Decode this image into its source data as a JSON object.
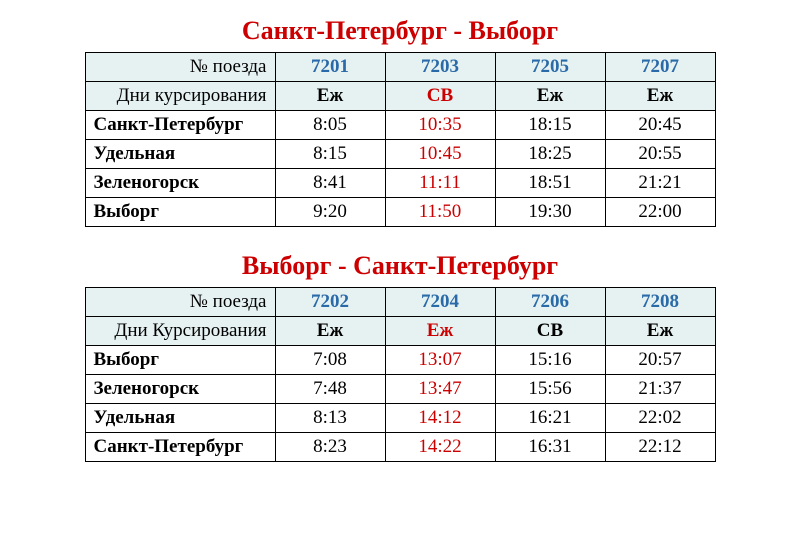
{
  "labels": {
    "train_no": "№ поезда",
    "days": "Дни курсирования",
    "days2": "Дни Курсирования"
  },
  "colors": {
    "title": "#cc0000",
    "header_bg": "#e6f2f2",
    "train_num": "#2a6aa8",
    "highlight": "#cc0000",
    "border": "#000000",
    "text": "#000000"
  },
  "tables": [
    {
      "title": "Санкт-Петербург - Выборг",
      "days_label_key": "days",
      "columns": [
        {
          "train": "7201",
          "days": "Еж",
          "highlight": false
        },
        {
          "train": "7203",
          "days": "СВ",
          "highlight": true
        },
        {
          "train": "7205",
          "days": "Еж",
          "highlight": false
        },
        {
          "train": "7207",
          "days": "Еж",
          "highlight": false
        }
      ],
      "rows": [
        {
          "station": "Санкт-Петербург",
          "times": [
            "8:05",
            "10:35",
            "18:15",
            "20:45"
          ]
        },
        {
          "station": "Удельная",
          "times": [
            "8:15",
            "10:45",
            "18:25",
            "20:55"
          ]
        },
        {
          "station": "Зеленогорск",
          "times": [
            "8:41",
            "11:11",
            "18:51",
            "21:21"
          ]
        },
        {
          "station": "Выборг",
          "times": [
            "9:20",
            "11:50",
            "19:30",
            "22:00"
          ]
        }
      ]
    },
    {
      "title": "Выборг - Санкт-Петербург",
      "days_label_key": "days2",
      "columns": [
        {
          "train": "7202",
          "days": "Еж",
          "highlight": false
        },
        {
          "train": "7204",
          "days": "Еж",
          "highlight": true
        },
        {
          "train": "7206",
          "days": "СВ",
          "highlight": false
        },
        {
          "train": "7208",
          "days": "Еж",
          "highlight": false
        }
      ],
      "rows": [
        {
          "station": "Выборг",
          "times": [
            "7:08",
            "13:07",
            "15:16",
            "20:57"
          ]
        },
        {
          "station": "Зеленогорск",
          "times": [
            "7:48",
            "13:47",
            "15:56",
            "21:37"
          ]
        },
        {
          "station": "Удельная",
          "times": [
            "8:13",
            "14:12",
            "16:21",
            "22:02"
          ]
        },
        {
          "station": "Санкт-Петербург",
          "times": [
            "8:23",
            "14:22",
            "16:31",
            "22:12"
          ]
        }
      ]
    }
  ]
}
